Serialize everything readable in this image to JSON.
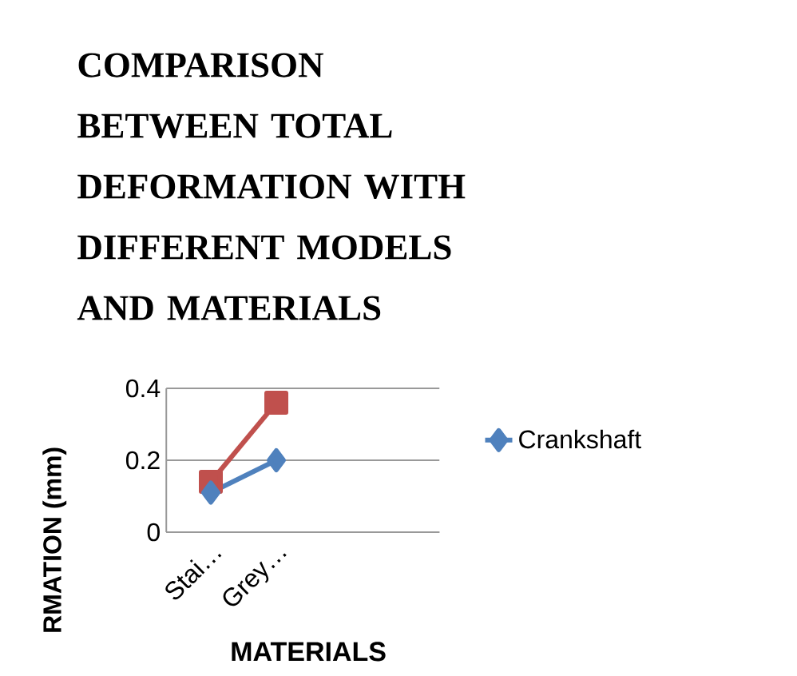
{
  "chart_data": {
    "type": "line",
    "title": "COMPARISON BETWEEN TOTAL DEFORMATION WITH DIFFERENT  MODELS AND MATERIALS",
    "xlabel": "MATERIALS",
    "ylabel": "RMATION (mm)",
    "categories": [
      "Stai…",
      "Grey…"
    ],
    "series": [
      {
        "name": "Crankshaft",
        "color": "#4f81bd",
        "marker": "diamond",
        "values": [
          0.11,
          0.2
        ]
      },
      {
        "color": "#c0504d",
        "marker": "square",
        "values": [
          0.14,
          0.36
        ]
      }
    ],
    "ylim": [
      0,
      0.4
    ],
    "yticks": [
      0,
      0.2,
      0.4
    ],
    "grid": "y",
    "legend": "right"
  }
}
